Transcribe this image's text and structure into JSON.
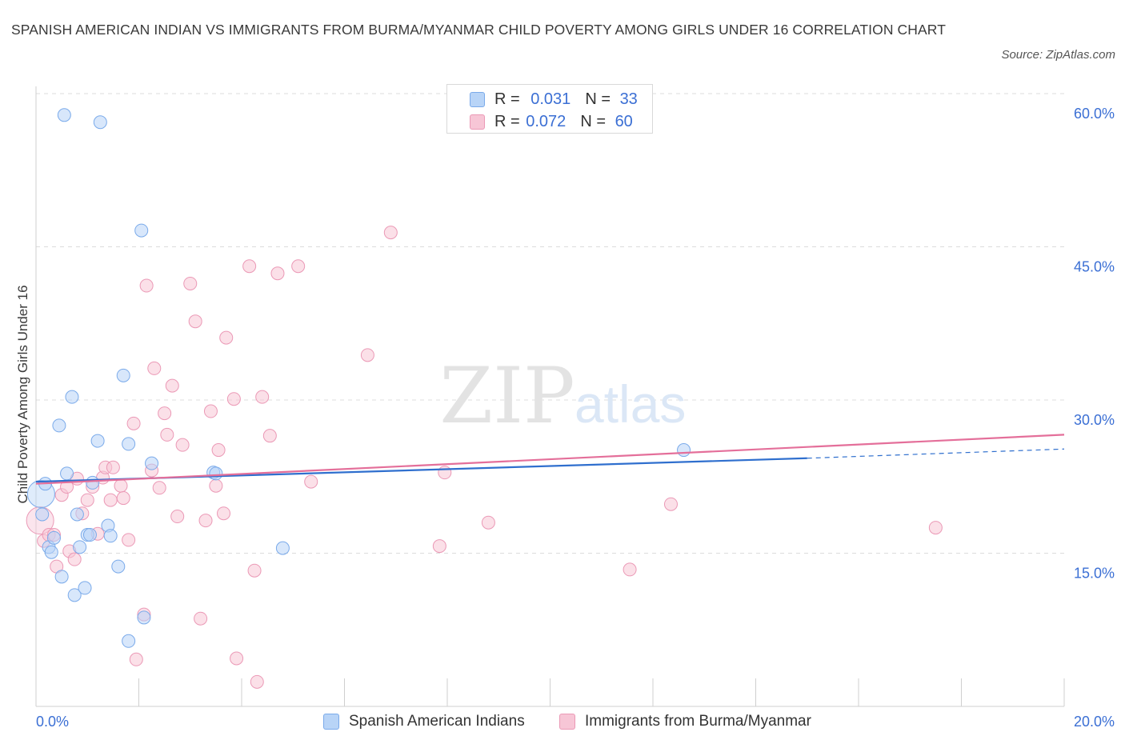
{
  "title": "SPANISH AMERICAN INDIAN VS IMMIGRANTS FROM BURMA/MYANMAR CHILD POVERTY AMONG GIRLS UNDER 16 CORRELATION CHART",
  "source": "Source: ZipAtlas.com",
  "watermark": {
    "zip": "ZIP",
    "atlas": "atlas"
  },
  "legend": {
    "series1": {
      "r_label": "R = ",
      "r_value": "0.031",
      "n_label": "N = ",
      "n_value": "33"
    },
    "series2": {
      "r_label": "R = ",
      "r_value": "0.072",
      "n_label": "N = ",
      "n_value": "60"
    }
  },
  "colors": {
    "blue_fill": "#b8d4f7",
    "blue_stroke": "#7aaaea",
    "blue_line": "#2f6fce",
    "pink_fill": "#f7c6d6",
    "pink_stroke": "#eb99b6",
    "pink_line": "#e46f9a",
    "axis_label": "#3b6fd4",
    "grid": "#dcdcdc"
  },
  "chart_data": {
    "type": "scatter",
    "title": "SPANISH AMERICAN INDIAN VS IMMIGRANTS FROM BURMA/MYANMAR CHILD POVERTY AMONG GIRLS UNDER 16 CORRELATION CHART",
    "xlabel": "",
    "ylabel": "Child Poverty Among Girls Under 16",
    "xlim": [
      0,
      20
    ],
    "ylim": [
      0,
      60
    ],
    "x_tick_labels": [
      "0.0%",
      "20.0%"
    ],
    "y_tick_values": [
      15,
      30,
      45,
      60
    ],
    "y_tick_labels": [
      "15.0%",
      "30.0%",
      "45.0%",
      "60.0%"
    ],
    "series": [
      {
        "name": "Spanish American Indians",
        "color": "blue",
        "R": 0.031,
        "N": 33,
        "trend": {
          "x0": 0,
          "y0": 22.0,
          "x1": 15.0,
          "y1": 24.3,
          "dash_to_x": 20,
          "dash_to_y": 25.2
        },
        "points": [
          {
            "x": 0.1,
            "y": 20.8,
            "big": true
          },
          {
            "x": 0.18,
            "y": 21.8
          },
          {
            "x": 0.12,
            "y": 18.8
          },
          {
            "x": 0.25,
            "y": 15.6
          },
          {
            "x": 0.3,
            "y": 15.1
          },
          {
            "x": 0.35,
            "y": 16.5
          },
          {
            "x": 0.45,
            "y": 27.5
          },
          {
            "x": 0.5,
            "y": 12.7
          },
          {
            "x": 0.6,
            "y": 22.8
          },
          {
            "x": 0.7,
            "y": 30.3
          },
          {
            "x": 0.75,
            "y": 10.9
          },
          {
            "x": 0.8,
            "y": 18.8
          },
          {
            "x": 0.85,
            "y": 15.6
          },
          {
            "x": 0.95,
            "y": 11.6
          },
          {
            "x": 1.0,
            "y": 16.8
          },
          {
            "x": 1.05,
            "y": 16.8
          },
          {
            "x": 1.1,
            "y": 21.9
          },
          {
            "x": 1.2,
            "y": 26.0
          },
          {
            "x": 1.4,
            "y": 17.7
          },
          {
            "x": 1.6,
            "y": 13.7
          },
          {
            "x": 1.7,
            "y": 32.4
          },
          {
            "x": 1.8,
            "y": 25.7
          },
          {
            "x": 1.8,
            "y": 6.4
          },
          {
            "x": 2.1,
            "y": 8.7
          },
          {
            "x": 2.25,
            "y": 23.8
          },
          {
            "x": 1.45,
            "y": 16.7
          },
          {
            "x": 2.05,
            "y": 46.6
          },
          {
            "x": 3.45,
            "y": 22.9
          },
          {
            "x": 4.8,
            "y": 15.5
          },
          {
            "x": 3.5,
            "y": 22.8
          },
          {
            "x": 0.55,
            "y": 57.9
          },
          {
            "x": 1.25,
            "y": 57.2
          },
          {
            "x": 12.6,
            "y": 25.1
          }
        ]
      },
      {
        "name": "Immigrants from Burma/Myanmar",
        "color": "pink",
        "R": 0.072,
        "N": 60,
        "trend": {
          "x0": 0,
          "y0": 21.8,
          "x1": 20,
          "y1": 26.6
        },
        "points": [
          {
            "x": 0.08,
            "y": 18.2,
            "big": true
          },
          {
            "x": 0.15,
            "y": 16.2
          },
          {
            "x": 0.25,
            "y": 16.8
          },
          {
            "x": 0.35,
            "y": 16.8
          },
          {
            "x": 0.4,
            "y": 13.7
          },
          {
            "x": 0.5,
            "y": 20.7
          },
          {
            "x": 0.6,
            "y": 21.5
          },
          {
            "x": 0.65,
            "y": 15.2
          },
          {
            "x": 0.75,
            "y": 14.4
          },
          {
            "x": 0.8,
            "y": 22.3
          },
          {
            "x": 0.9,
            "y": 18.9
          },
          {
            "x": 1.0,
            "y": 20.2
          },
          {
            "x": 1.1,
            "y": 21.5
          },
          {
            "x": 1.2,
            "y": 16.9
          },
          {
            "x": 1.3,
            "y": 22.4
          },
          {
            "x": 1.35,
            "y": 23.4
          },
          {
            "x": 1.5,
            "y": 23.4
          },
          {
            "x": 1.45,
            "y": 20.2
          },
          {
            "x": 1.65,
            "y": 21.6
          },
          {
            "x": 1.7,
            "y": 20.4
          },
          {
            "x": 1.8,
            "y": 16.3
          },
          {
            "x": 1.9,
            "y": 27.7
          },
          {
            "x": 1.95,
            "y": 4.6
          },
          {
            "x": 2.1,
            "y": 9.0
          },
          {
            "x": 2.15,
            "y": 41.2
          },
          {
            "x": 2.25,
            "y": 23.1
          },
          {
            "x": 2.3,
            "y": 33.1
          },
          {
            "x": 2.4,
            "y": 21.4
          },
          {
            "x": 2.5,
            "y": 28.7
          },
          {
            "x": 2.55,
            "y": 26.6
          },
          {
            "x": 2.65,
            "y": 31.4
          },
          {
            "x": 2.75,
            "y": 18.6
          },
          {
            "x": 2.85,
            "y": 25.6
          },
          {
            "x": 3.0,
            "y": 41.4
          },
          {
            "x": 3.1,
            "y": 37.7
          },
          {
            "x": 3.2,
            "y": 8.6
          },
          {
            "x": 3.3,
            "y": 18.2
          },
          {
            "x": 3.4,
            "y": 28.9
          },
          {
            "x": 3.5,
            "y": 21.6
          },
          {
            "x": 3.55,
            "y": 25.1
          },
          {
            "x": 3.65,
            "y": 18.9
          },
          {
            "x": 3.7,
            "y": 36.1
          },
          {
            "x": 3.85,
            "y": 30.1
          },
          {
            "x": 3.9,
            "y": 4.7
          },
          {
            "x": 4.15,
            "y": 43.1
          },
          {
            "x": 4.25,
            "y": 13.3
          },
          {
            "x": 4.3,
            "y": 2.4
          },
          {
            "x": 4.4,
            "y": 30.3
          },
          {
            "x": 4.55,
            "y": 26.5
          },
          {
            "x": 4.7,
            "y": 42.4
          },
          {
            "x": 5.1,
            "y": 43.1
          },
          {
            "x": 5.35,
            "y": 22.0
          },
          {
            "x": 6.45,
            "y": 34.4
          },
          {
            "x": 6.9,
            "y": 46.4
          },
          {
            "x": 7.85,
            "y": 15.7
          },
          {
            "x": 7.95,
            "y": 22.9
          },
          {
            "x": 8.8,
            "y": 18.0
          },
          {
            "x": 11.55,
            "y": 13.4
          },
          {
            "x": 12.35,
            "y": 19.8
          },
          {
            "x": 17.5,
            "y": 17.5
          }
        ]
      }
    ]
  }
}
